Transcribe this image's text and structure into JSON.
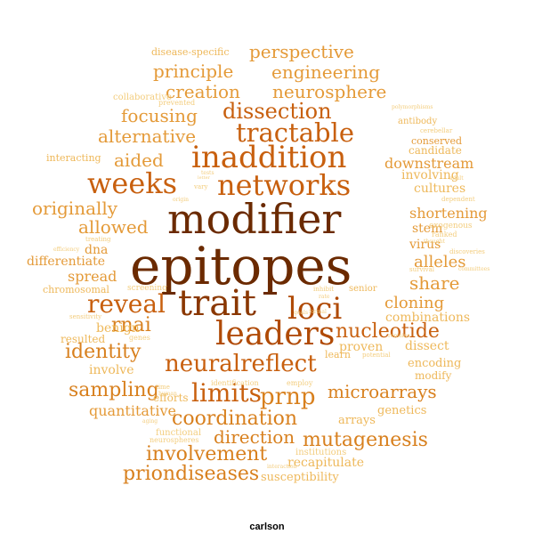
{
  "caption": "carlson",
  "colors": {
    "c0": "#6b2a00",
    "c1": "#8a3700",
    "c2": "#b04a05",
    "c3": "#c8600f",
    "c4": "#d8801e",
    "c5": "#e49a38",
    "c6": "#eeb85a",
    "c7": "#f3cd7e"
  },
  "words": [
    "epitopes",
    "modifier",
    "trait",
    "leaders",
    "loci",
    "inaddition",
    "networks",
    "weeks",
    "neuralreflect",
    "tractable",
    "limits",
    "dissection",
    "reveal",
    "nucleotide",
    "prnp",
    "coordination",
    "microarrays",
    "mutagenesis",
    "involvement",
    "direction",
    "priondiseases",
    "identity",
    "sampling",
    "rnai",
    "perspective",
    "engineering",
    "principle",
    "creation",
    "neurosphere",
    "focusing",
    "alternative",
    "aided",
    "originally",
    "allowed",
    "differentiate",
    "dna",
    "spread",
    "chromosomal",
    "share",
    "alleles",
    "cloning",
    "combinations",
    "shortening",
    "stem",
    "virus",
    "cultures",
    "involving",
    "downstream",
    "candidate",
    "conserved",
    "proven",
    "dissect",
    "encoding",
    "modify",
    "genetics",
    "arrays",
    "quantitative",
    "efforts",
    "involve",
    "benign",
    "resulted",
    "recapitulate",
    "susceptibility",
    "institutions",
    "learn",
    "senior",
    "disease-specific",
    "interacting",
    "collaborative",
    "prevented",
    "antibody",
    "cerebellar",
    "polymorphisms",
    "exogenous",
    "ranked",
    "dependent",
    "discoveries",
    "survival",
    "sensitivity",
    "genes",
    "screening",
    "identification",
    "functional",
    "neurospheres",
    "employ",
    "potential",
    "thought",
    "committees",
    "inhibit",
    "formal",
    "time",
    "human",
    "origin",
    "tests",
    "rate",
    "goals",
    "treating",
    "efficiency",
    "vary",
    "letter",
    "interaction",
    "aging",
    "remains",
    "adult"
  ]
}
